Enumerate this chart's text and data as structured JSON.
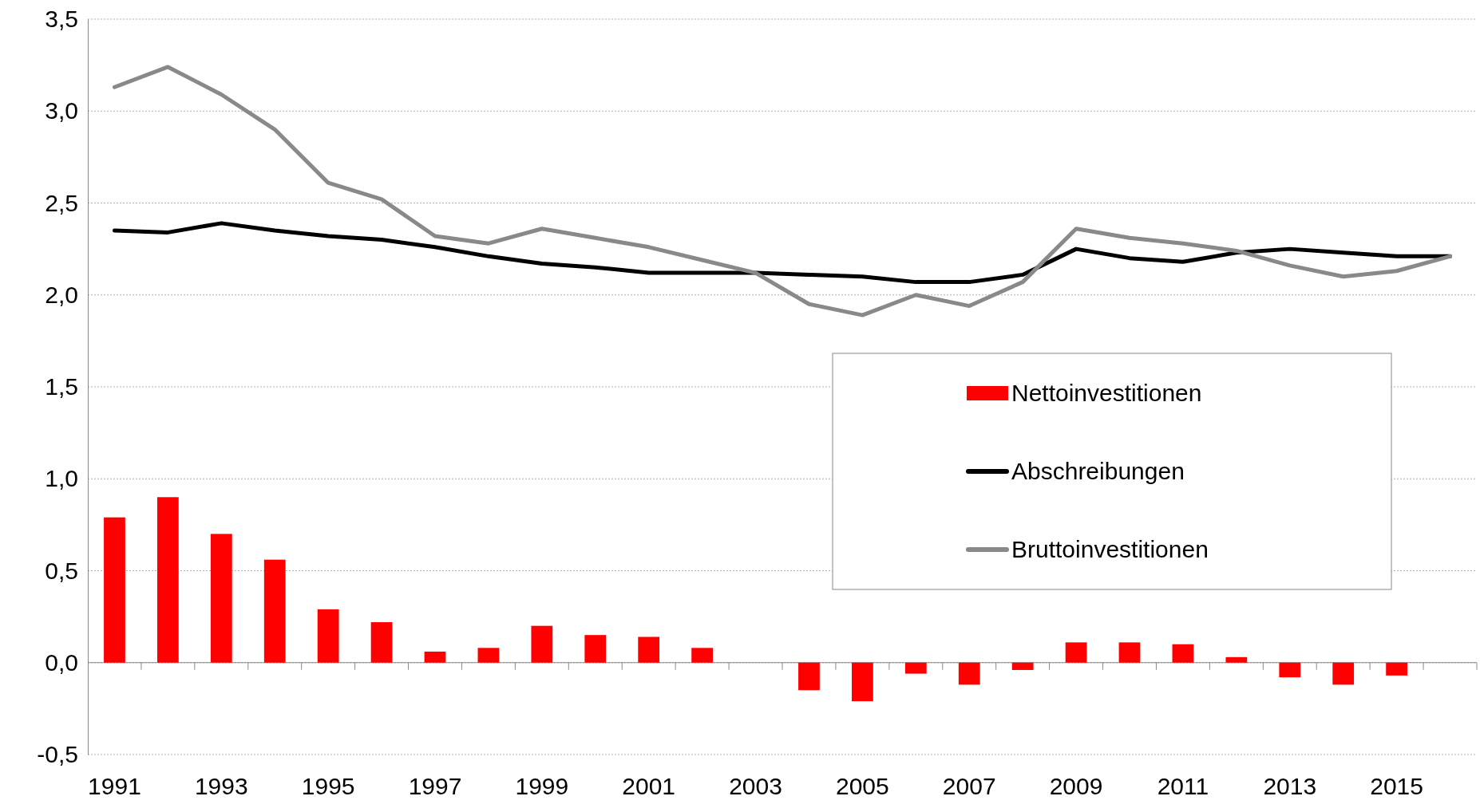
{
  "chart_data": {
    "type": "bar",
    "categories": [
      "1991",
      null,
      "1993",
      null,
      "1995",
      null,
      "1997",
      null,
      "1999",
      null,
      "2001",
      null,
      "2003",
      null,
      "2005",
      null,
      "2007",
      null,
      "2009",
      null,
      "2011",
      null,
      "2013",
      null,
      "2015",
      null
    ],
    "series": [
      {
        "name": "Nettoinvestitionen",
        "color": "#ff0000",
        "values": [
          0.79,
          0.9,
          0.7,
          0.56,
          0.29,
          0.22,
          0.06,
          0.08,
          0.2,
          0.15,
          0.14,
          0.08,
          0,
          -0.15,
          -0.21,
          -0.06,
          -0.12,
          -0.04,
          0.11,
          0.11,
          0.1,
          0.03,
          -0.08,
          -0.12,
          -0.07,
          0
        ]
      },
      {
        "name": "Abschreibungen",
        "type": "line",
        "color": "#000000",
        "values": [
          2.35,
          2.34,
          2.39,
          2.35,
          2.32,
          2.3,
          2.26,
          2.21,
          2.17,
          2.15,
          2.12,
          2.12,
          2.12,
          2.11,
          2.1,
          2.07,
          2.07,
          2.11,
          2.25,
          2.2,
          2.18,
          2.23,
          2.25,
          2.23,
          2.21,
          2.21
        ]
      },
      {
        "name": "Bruttoinvestitionen",
        "type": "line",
        "color": "#898989",
        "values": [
          3.13,
          3.24,
          3.09,
          2.9,
          2.61,
          2.52,
          2.32,
          2.28,
          2.36,
          2.31,
          2.26,
          2.19,
          2.12,
          1.95,
          1.89,
          2.0,
          1.94,
          2.07,
          2.36,
          2.31,
          2.28,
          2.24,
          2.16,
          2.1,
          2.13,
          2.21
        ]
      }
    ],
    "ylim": [
      -0.5,
      3.5
    ],
    "yticks": [
      {
        "value": -0.5,
        "label": "-0,5"
      },
      {
        "value": 0,
        "label": "0,0"
      },
      {
        "value": 0.5,
        "label": "0,5"
      },
      {
        "value": 1,
        "label": "1,0"
      },
      {
        "value": 1.5,
        "label": "1,5"
      },
      {
        "value": 2,
        "label": "2,0"
      },
      {
        "value": 2.5,
        "label": "2,5"
      },
      {
        "value": 3,
        "label": "3,0"
      },
      {
        "value": 3.5,
        "label": "3,5"
      }
    ],
    "grid": "y",
    "legend": "right",
    "marker": "none",
    "line_style": "solid"
  }
}
